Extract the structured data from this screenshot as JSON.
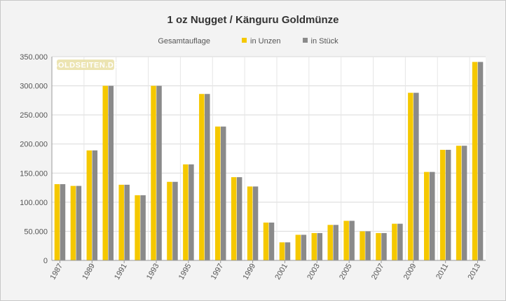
{
  "chart_data": {
    "type": "bar",
    "title": "1 oz Nugget / Känguru Goldmünze",
    "legend_title": "Gesamtauflage",
    "legend_position": "top",
    "grid": true,
    "watermark": "GOLDSEITEN.DE",
    "categories": [
      "1987",
      "1988",
      "1989",
      "1990",
      "1991",
      "1992",
      "1993",
      "1994",
      "1995",
      "1996",
      "1997",
      "1998",
      "1999",
      "2000",
      "2001",
      "2002",
      "2003",
      "2004",
      "2005",
      "2006",
      "2007",
      "2008",
      "2009",
      "2010",
      "2011",
      "2012",
      "2013"
    ],
    "x_tick_labels": [
      "1987",
      "1989",
      "1991",
      "1993",
      "1995",
      "1997",
      "1999",
      "2001",
      "2003",
      "2005",
      "2007",
      "2009",
      "2011",
      "2013"
    ],
    "y_tick_labels": [
      "0",
      "50.000",
      "100.000",
      "150.000",
      "200.000",
      "250.000",
      "300.000",
      "350.000"
    ],
    "ylim": [
      0,
      350000
    ],
    "series": [
      {
        "name": "in Unzen",
        "color": "#f5c800",
        "values": [
          131000,
          128000,
          189000,
          300000,
          130000,
          112000,
          300000,
          135000,
          165000,
          286000,
          230000,
          143000,
          127000,
          65000,
          31000,
          44000,
          47000,
          61000,
          68000,
          50000,
          47000,
          63000,
          288000,
          152000,
          190000,
          197000,
          341000
        ]
      },
      {
        "name": "in Stück",
        "color": "#8a8a8a",
        "values": [
          131000,
          128000,
          189000,
          300000,
          130000,
          112000,
          300000,
          135000,
          165000,
          286000,
          230000,
          143000,
          127000,
          65000,
          31000,
          44000,
          47000,
          61000,
          68000,
          50000,
          47000,
          63000,
          288000,
          152000,
          190000,
          197000,
          341000
        ]
      }
    ]
  }
}
